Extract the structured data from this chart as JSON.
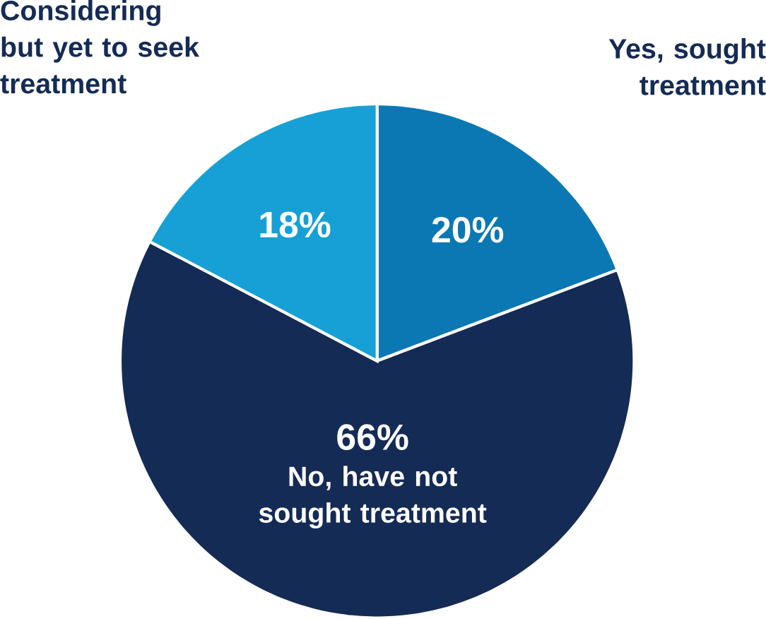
{
  "chart_data": {
    "type": "pie",
    "categories": [
      "Yes, sought treatment",
      "No, have not sought treatment",
      "Considering but yet to seek treatment"
    ],
    "values": [
      20,
      66,
      18
    ],
    "value_labels": [
      "20%",
      "66%",
      "18%"
    ],
    "colors": [
      "#0b78b3",
      "#142b55",
      "#17a0d5"
    ]
  }
}
